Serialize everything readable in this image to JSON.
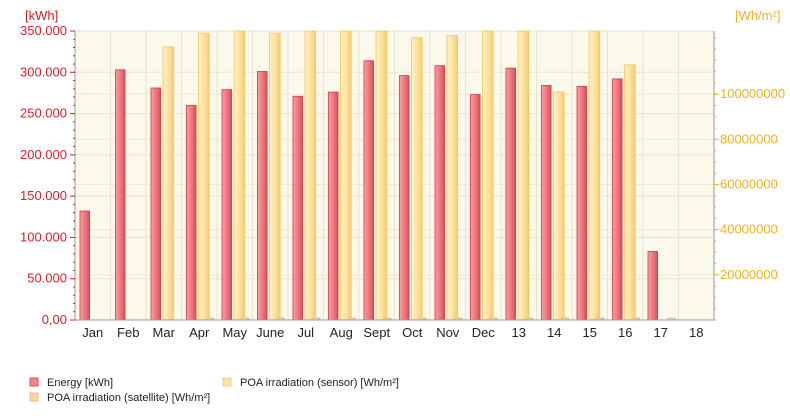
{
  "chart_data": {
    "type": "bar",
    "title": "",
    "left_axis_unit": "[kWh]",
    "right_axis_unit": "[Wh/m²]",
    "categories": [
      "Jan",
      "Feb",
      "Mar",
      "Apr",
      "May",
      "June",
      "Jul",
      "Aug",
      "Sept",
      "Oct",
      "Nov",
      "Dec",
      "13",
      "14",
      "15",
      "16",
      "17",
      "18"
    ],
    "left_ylim": [
      0,
      350000
    ],
    "left_ticks": [
      "0,00",
      "50.000",
      "100.000",
      "150.000",
      "200.000",
      "250.000",
      "300.000",
      "350.000"
    ],
    "right_ylim": [
      0,
      128000000
    ],
    "right_ticks": [
      "20000000",
      "40000000",
      "60000000",
      "80000000",
      "100000000"
    ],
    "grid": "both",
    "legend_position": "bottom",
    "series": [
      {
        "name": "Energy [kWh]",
        "axis": "left",
        "color": "#f0787f",
        "values": [
          132000,
          303000,
          281000,
          260000,
          279000,
          301000,
          271000,
          276000,
          314000,
          296000,
          308000,
          273000,
          305000,
          284000,
          283000,
          292000,
          83000,
          null
        ]
      },
      {
        "name": "POA irradiation (sensor) [Wh/m²]",
        "axis": "right",
        "color": "#fde3a0",
        "values": [
          null,
          null,
          121000000,
          127000000,
          128000000,
          127000000,
          128000000,
          128000000,
          128000000,
          125000000,
          126000000,
          128000000,
          128000000,
          101000000,
          128000000,
          113000000,
          null,
          null
        ]
      },
      {
        "name": "POA irradiation (satellite) [Wh/m²]",
        "axis": "right",
        "color": "#fbd3a8",
        "values": [
          null,
          null,
          null,
          800000,
          800000,
          800000,
          800000,
          800000,
          800000,
          800000,
          800000,
          800000,
          800000,
          800000,
          800000,
          800000,
          600000,
          null
        ]
      }
    ]
  }
}
